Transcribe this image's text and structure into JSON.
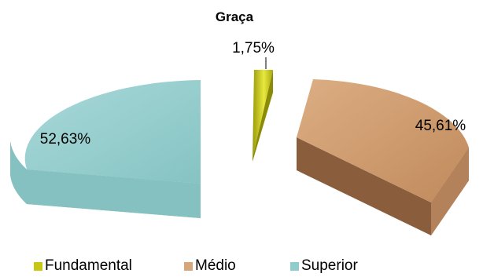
{
  "chart_data": {
    "type": "pie",
    "title": "Graça",
    "categories": [
      "Fundamental",
      "Médio",
      "Superior"
    ],
    "values": [
      1.75,
      45.61,
      52.63
    ],
    "labels": [
      "1,75%",
      "45,61%",
      "52,63%"
    ],
    "colors": [
      "#c8c814",
      "#d6a77a",
      "#8fcccc"
    ],
    "legend_position": "bottom",
    "exploded": true,
    "three_d": true
  },
  "legend": {
    "items": [
      {
        "label": "Fundamental"
      },
      {
        "label": "Médio"
      },
      {
        "label": "Superior"
      }
    ]
  }
}
